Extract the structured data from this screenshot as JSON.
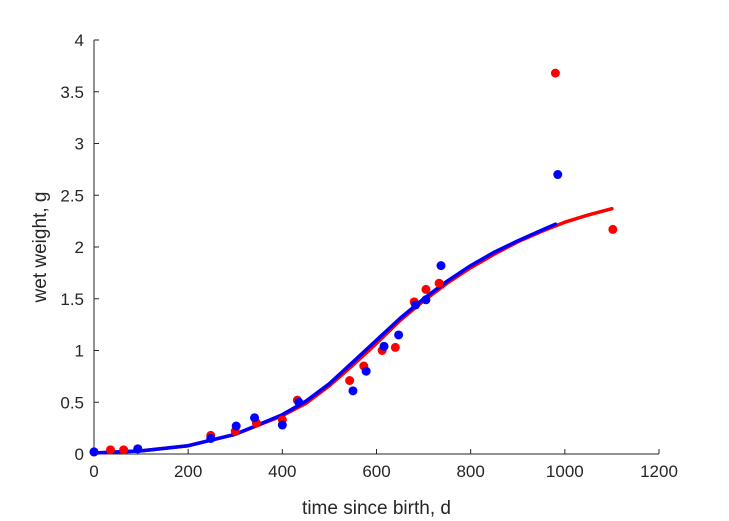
{
  "chart_data": {
    "type": "scatter",
    "xlabel": "time since birth, d",
    "ylabel": "wet weight, g",
    "xlim": [
      0,
      1200
    ],
    "ylim": [
      0,
      4
    ],
    "xticks": [
      0,
      200,
      400,
      600,
      800,
      1000,
      1200
    ],
    "yticks": [
      0,
      0.5,
      1,
      1.5,
      2,
      2.5,
      3,
      3.5,
      4
    ],
    "ytick_labels": [
      "0",
      "0.5",
      "1",
      "1.5",
      "2",
      "2.5",
      "3",
      "3.5",
      "4"
    ],
    "grid": false,
    "series": [
      {
        "kind": "points",
        "color": "#ff0000",
        "x": [
          0,
          35,
          63,
          93,
          248,
          300,
          345,
          400,
          432,
          543,
          573,
          612,
          640,
          680,
          705,
          733,
          980,
          1102
        ],
        "y": [
          0.02,
          0.04,
          0.04,
          0.05,
          0.18,
          0.22,
          0.3,
          0.33,
          0.52,
          0.71,
          0.85,
          1.0,
          1.03,
          1.47,
          1.59,
          1.65,
          3.68,
          2.17
        ]
      },
      {
        "kind": "points",
        "color": "#0000ff",
        "x": [
          0,
          93,
          248,
          302,
          341,
          400,
          435,
          550,
          578,
          616,
          647,
          683,
          705,
          737,
          985
        ],
        "y": [
          0.02,
          0.05,
          0.15,
          0.27,
          0.35,
          0.28,
          0.5,
          0.61,
          0.8,
          1.04,
          1.15,
          1.44,
          1.49,
          1.82,
          2.7
        ]
      },
      {
        "kind": "line",
        "color": "#ff0000",
        "x": [
          0,
          100,
          200,
          300,
          400,
          450,
          500,
          550,
          600,
          650,
          700,
          750,
          800,
          850,
          900,
          950,
          1000,
          1050,
          1100
        ],
        "y": [
          0.01,
          0.03,
          0.08,
          0.19,
          0.37,
          0.49,
          0.66,
          0.86,
          1.07,
          1.29,
          1.48,
          1.65,
          1.8,
          1.93,
          2.05,
          2.15,
          2.24,
          2.31,
          2.37
        ]
      },
      {
        "kind": "line",
        "color": "#0000ff",
        "x": [
          0,
          100,
          200,
          300,
          400,
          450,
          500,
          550,
          600,
          650,
          700,
          750,
          800,
          850,
          900,
          950,
          980
        ],
        "y": [
          0.01,
          0.03,
          0.08,
          0.19,
          0.38,
          0.51,
          0.68,
          0.89,
          1.1,
          1.31,
          1.5,
          1.67,
          1.82,
          1.95,
          2.06,
          2.16,
          2.22
        ]
      }
    ]
  }
}
